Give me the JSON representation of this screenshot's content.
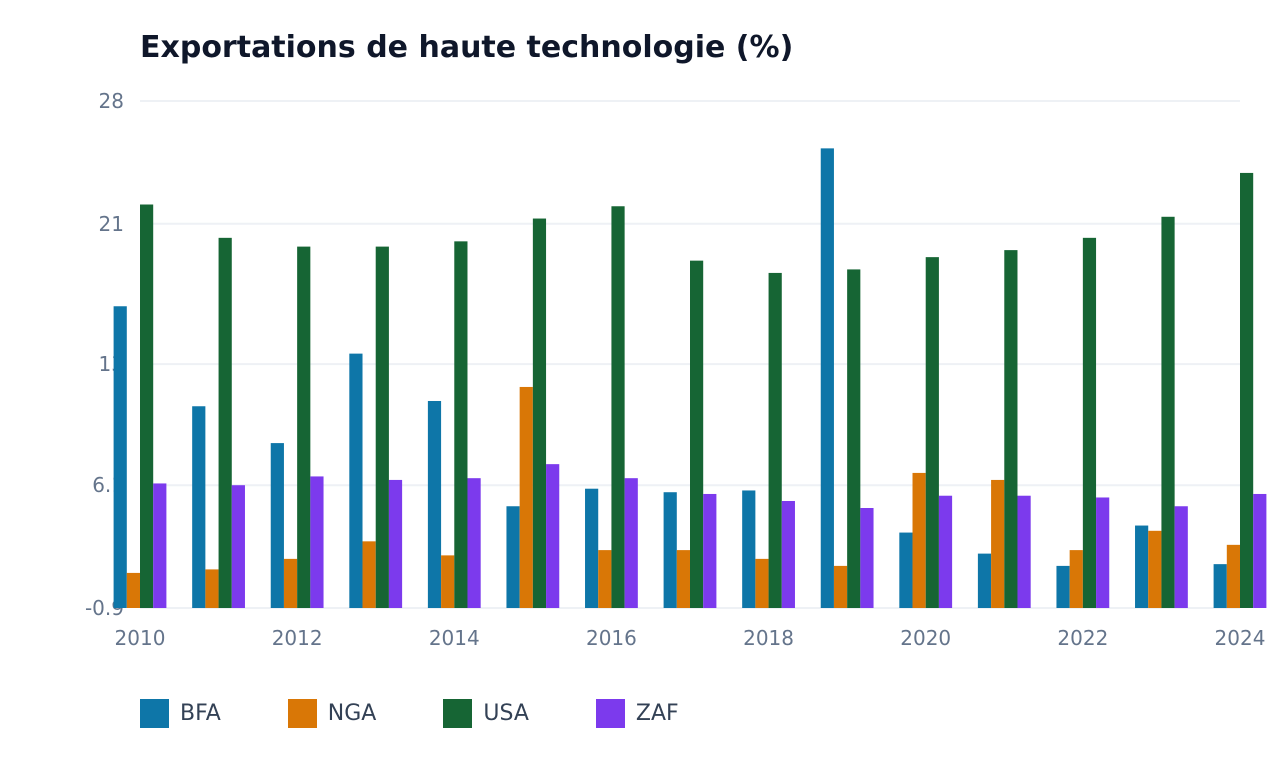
{
  "chart_data": {
    "type": "bar",
    "title": "Exportations de haute technologie (%)",
    "xlabel": "",
    "ylabel": "",
    "categories": [
      "2010",
      "2011",
      "2012",
      "2013",
      "2014",
      "2015",
      "2016",
      "2017",
      "2018",
      "2019",
      "2020",
      "2021",
      "2022",
      "2023",
      "2024"
    ],
    "x_tick_labels": [
      "2010",
      "2012",
      "2014",
      "2016",
      "2018",
      "2020",
      "2022",
      "2024"
    ],
    "y_tick_labels": [
      "-0.9",
      "6.1",
      "13",
      "21",
      "28"
    ],
    "y_ticks": [
      -0.9,
      6.1,
      13,
      21,
      28
    ],
    "ylim": [
      -0.9,
      28
    ],
    "grid": true,
    "legend_position": "bottom-left",
    "series": [
      {
        "name": "BFA",
        "color": "#0e76a8",
        "values": [
          16.3,
          10.6,
          8.5,
          13.6,
          10.9,
          4.9,
          5.9,
          5.7,
          5.8,
          25.3,
          3.4,
          2.2,
          1.5,
          3.8,
          1.6
        ]
      },
      {
        "name": "NGA",
        "color": "#d97706",
        "values": [
          1.1,
          1.3,
          1.9,
          2.9,
          2.1,
          11.7,
          2.4,
          2.4,
          1.9,
          1.5,
          6.8,
          6.4,
          2.4,
          3.5,
          2.7
        ]
      },
      {
        "name": "USA",
        "color": "#166534",
        "values": [
          22.1,
          20.2,
          19.7,
          19.7,
          20.0,
          21.3,
          22.0,
          18.9,
          18.2,
          18.4,
          19.1,
          19.5,
          20.2,
          21.4,
          23.9
        ]
      },
      {
        "name": "ZAF",
        "color": "#7c3aed",
        "values": [
          6.2,
          6.1,
          6.6,
          6.4,
          6.5,
          7.3,
          6.5,
          5.6,
          5.2,
          4.8,
          5.5,
          5.5,
          5.4,
          4.9,
          5.6
        ]
      }
    ]
  }
}
